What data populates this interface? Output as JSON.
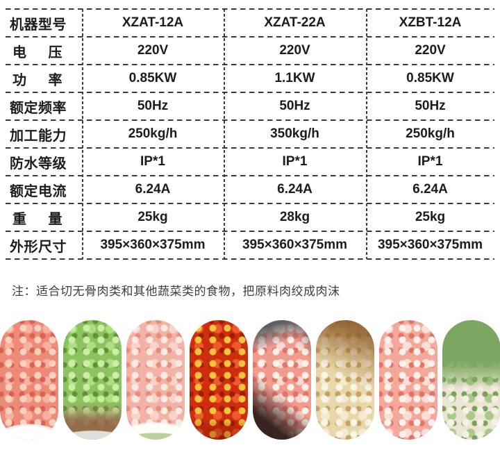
{
  "table": {
    "border_color": "#3a3a3a",
    "column_count": 4,
    "rows": [
      {
        "label": "机器型号",
        "values": [
          "XZAT-12A",
          "XZAT-22A",
          "XZBT-12A"
        ]
      },
      {
        "label": "电压",
        "values": [
          "220V",
          "220V",
          "220V"
        ]
      },
      {
        "label": "功率",
        "values": [
          "0.85KW",
          "1.1KW",
          "0.85KW"
        ]
      },
      {
        "label": "额定频率",
        "values": [
          "50Hz",
          "50Hz",
          "50Hz"
        ]
      },
      {
        "label": "加工能力",
        "values": [
          "250kg/h",
          "350kg/h",
          "250kg/h"
        ]
      },
      {
        "label": "防水等级",
        "values": [
          "IP*1",
          "IP*1",
          "IP*1"
        ]
      },
      {
        "label": "额定电流",
        "values": [
          "6.24A",
          "6.24A",
          "6.24A"
        ]
      },
      {
        "label": "重量",
        "values": [
          "25kg",
          "28kg",
          "25kg"
        ]
      },
      {
        "label": "外形尺寸",
        "values": [
          "395×360×375mm",
          "395×360×375mm",
          "395×360×375mm"
        ]
      }
    ]
  },
  "note": {
    "prefix": "注：",
    "text": "适合切无骨肉类和其他蔬菜类的食物，把原料肉绞成肉沫",
    "color": "#3d3d3d"
  },
  "food": {
    "items": [
      {
        "label": "minced red meat",
        "colors": [
          "#ee8a78",
          "#f7b19e",
          "#fbd0bf",
          "#d96250"
        ]
      },
      {
        "label": "chopped celery",
        "colors": [
          "#8cc35f",
          "#aedd82",
          "#cdeca6",
          "#5f9434"
        ]
      },
      {
        "label": "minced shrimp meat",
        "colors": [
          "#f2b2a6",
          "#f9d3ca",
          "#fce9e3",
          "#e68d7e"
        ]
      },
      {
        "label": "chopped red chili",
        "colors": [
          "#cf2e0e",
          "#ef5a2c",
          "#f6c33e",
          "#9e1d04"
        ]
      },
      {
        "label": "minced pork",
        "colors": [
          "#f19a8e",
          "#fad9d0",
          "#fdf0ea",
          "#df7468"
        ]
      },
      {
        "label": "chopped translucent garlic",
        "colors": [
          "#e8d7ab",
          "#f4ead0",
          "#faf4e4",
          "#c6a263"
        ]
      },
      {
        "label": "minced pork belly",
        "colors": [
          "#f3a89a",
          "#fadfd7",
          "#fdf1ed",
          "#e07467"
        ]
      },
      {
        "label": "chopped scallion and onion",
        "colors": [
          "#ebe5d3",
          "#a9c98b",
          "#f5f1e3",
          "#7ba15e"
        ]
      }
    ]
  }
}
